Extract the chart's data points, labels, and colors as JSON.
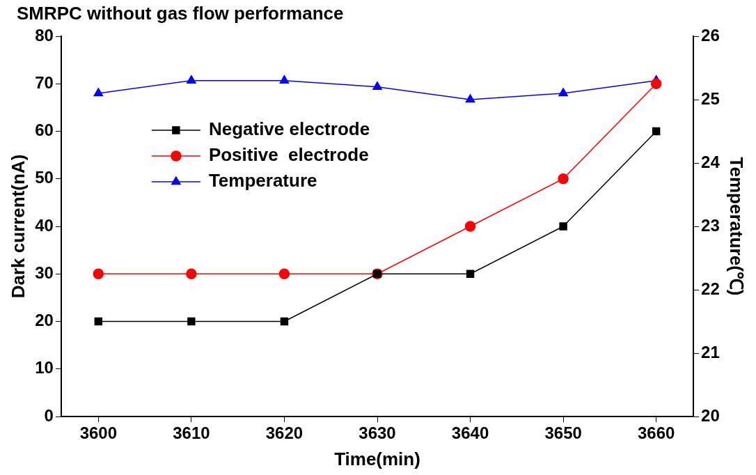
{
  "chart_data": {
    "type": "line",
    "title": "SMRPC without gas flow performance",
    "xlabel": "Time(min)",
    "ylabel": "Dark current(nA)",
    "y2label": "Temperature(℃)",
    "x": [
      3600,
      3610,
      3620,
      3630,
      3640,
      3650,
      3660
    ],
    "series": [
      {
        "name": "Negative electrode",
        "color": "#000000",
        "marker": "square",
        "values": [
          20,
          20,
          20,
          30,
          30,
          40,
          60
        ]
      },
      {
        "name": "Positive  electrode",
        "color": "#ff0000",
        "marker": "circle",
        "values": [
          30,
          30,
          30,
          30,
          40,
          50,
          70
        ]
      },
      {
        "name": "Temperature",
        "color": "#0000ff",
        "marker": "triangle",
        "axis": "y2",
        "values": [
          25.1,
          25.3,
          25.3,
          25.2,
          25.0,
          25.1,
          25.3
        ]
      }
    ],
    "xlim": [
      3596,
      3664
    ],
    "xticks": [
      3600,
      3610,
      3620,
      3630,
      3640,
      3650,
      3660
    ],
    "ylim": [
      0,
      80
    ],
    "yticks": [
      0,
      10,
      20,
      30,
      40,
      50,
      60,
      70,
      80
    ],
    "y2lim": [
      20,
      26
    ],
    "y2ticks": [
      20,
      21,
      22,
      23,
      24,
      25,
      26
    ],
    "grid": false,
    "legend": "top left",
    "line_style": "solid"
  }
}
